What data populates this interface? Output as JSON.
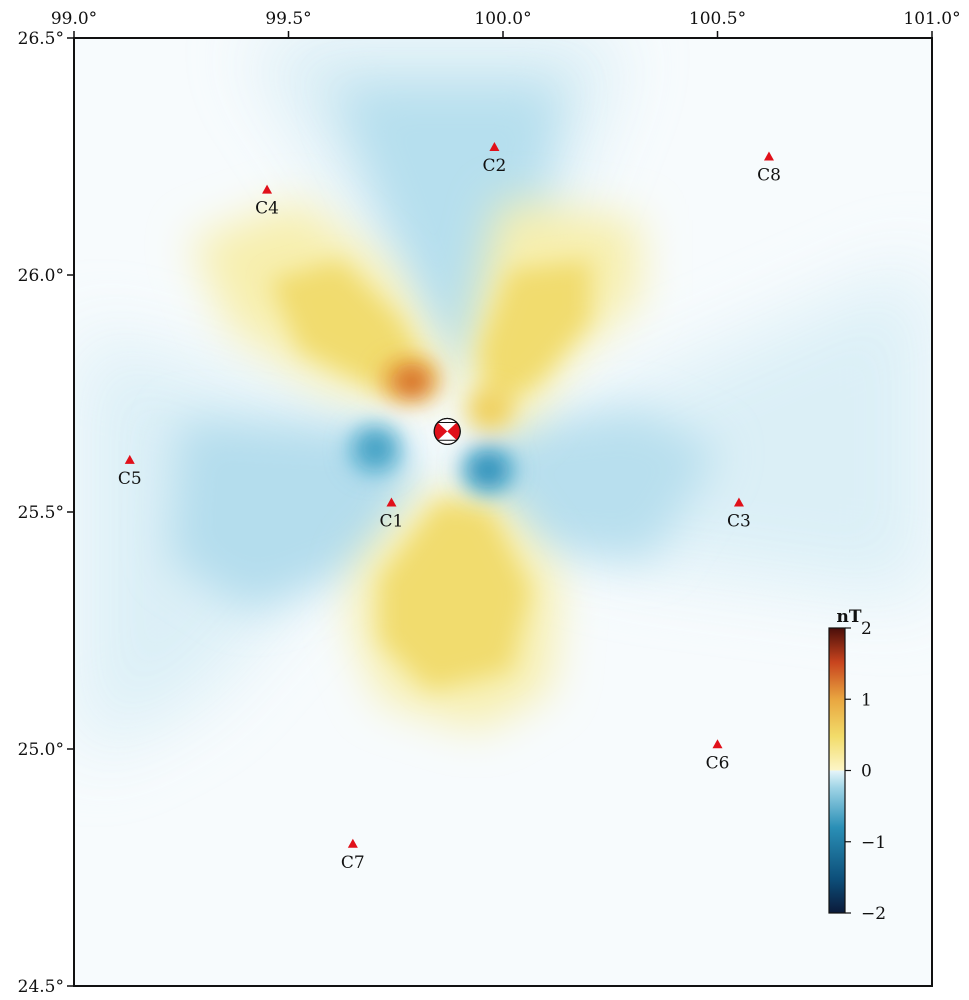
{
  "map": {
    "lon_range": [
      99.0,
      101.0
    ],
    "lat_range": [
      24.5,
      26.5
    ],
    "lon_ticks": [
      {
        "value": 99.0,
        "label": "99.0°"
      },
      {
        "value": 99.5,
        "label": "99.5°"
      },
      {
        "value": 100.0,
        "label": "100.0°"
      },
      {
        "value": 100.5,
        "label": "100.5°"
      },
      {
        "value": 101.0,
        "label": "101.0°"
      }
    ],
    "lat_ticks": [
      {
        "value": 26.5,
        "label": "26.5°"
      },
      {
        "value": 26.0,
        "label": "26.0°"
      },
      {
        "value": 25.5,
        "label": "25.5°"
      },
      {
        "value": 25.0,
        "label": "25.0°"
      },
      {
        "value": 24.5,
        "label": "24.5°"
      }
    ],
    "stations": [
      {
        "name": "C1",
        "lon": 99.74,
        "lat": 25.52
      },
      {
        "name": "C2",
        "lon": 99.98,
        "lat": 26.27
      },
      {
        "name": "C3",
        "lon": 100.55,
        "lat": 25.52
      },
      {
        "name": "C4",
        "lon": 99.45,
        "lat": 26.18
      },
      {
        "name": "C5",
        "lon": 99.13,
        "lat": 25.61
      },
      {
        "name": "C6",
        "lon": 100.5,
        "lat": 25.01
      },
      {
        "name": "C7",
        "lon": 99.65,
        "lat": 24.8
      },
      {
        "name": "C8",
        "lon": 100.62,
        "lat": 26.25
      }
    ],
    "epicenter": {
      "lon": 99.87,
      "lat": 25.67
    },
    "station_color": "#e0101a",
    "beachball_color": "#e0101a"
  },
  "colorbar": {
    "unit": "nT",
    "range": [
      -2,
      2
    ],
    "ticks": [
      {
        "value": 2,
        "label": "2"
      },
      {
        "value": 1,
        "label": "1"
      },
      {
        "value": 0,
        "label": "0"
      },
      {
        "value": -1,
        "label": "−1"
      },
      {
        "value": -2,
        "label": "−2"
      }
    ],
    "colors": [
      "#0b1a3a",
      "#0d4f7a",
      "#2a8fb6",
      "#9fd4e6",
      "#e6f5fa",
      "#fdf6c8",
      "#f2dc6a",
      "#e9a640",
      "#c8441e",
      "#4a0e0a"
    ]
  }
}
